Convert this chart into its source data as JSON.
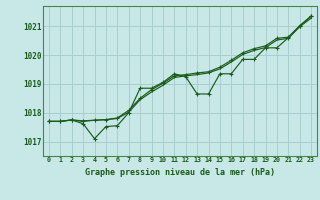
{
  "title": "Graphe pression niveau de la mer (hPa)",
  "bg_color": "#c8e8e8",
  "grid_color": "#a8cece",
  "line_color": "#1a5c1a",
  "x_labels": [
    "0",
    "1",
    "2",
    "3",
    "4",
    "5",
    "6",
    "7",
    "8",
    "9",
    "10",
    "11",
    "12",
    "13",
    "14",
    "15",
    "16",
    "17",
    "18",
    "19",
    "20",
    "21",
    "22",
    "23"
  ],
  "y_ticks": [
    1017,
    1018,
    1019,
    1020,
    1021
  ],
  "ylim": [
    1016.5,
    1021.7
  ],
  "xlim": [
    -0.5,
    23.5
  ],
  "series1": [
    1017.7,
    1017.7,
    1017.75,
    1017.62,
    1017.1,
    1017.52,
    1017.55,
    1018.0,
    1018.85,
    1018.85,
    1019.05,
    1019.35,
    1019.25,
    1018.65,
    1018.65,
    1019.35,
    1019.35,
    1019.85,
    1019.85,
    1020.25,
    1020.25,
    1020.6,
    1021.0,
    1021.35
  ],
  "series2": [
    1017.7,
    1017.7,
    1017.75,
    1017.72,
    1017.74,
    1017.76,
    1017.82,
    1018.08,
    1018.5,
    1018.8,
    1019.02,
    1019.28,
    1019.32,
    1019.38,
    1019.42,
    1019.58,
    1019.82,
    1020.08,
    1020.22,
    1020.32,
    1020.58,
    1020.62,
    1021.02,
    1021.35
  ],
  "series3": [
    1017.7,
    1017.7,
    1017.75,
    1017.7,
    1017.74,
    1017.76,
    1017.8,
    1018.02,
    1018.45,
    1018.72,
    1018.95,
    1019.22,
    1019.28,
    1019.32,
    1019.38,
    1019.52,
    1019.76,
    1020.02,
    1020.16,
    1020.26,
    1020.52,
    1020.58,
    1020.98,
    1021.28
  ]
}
